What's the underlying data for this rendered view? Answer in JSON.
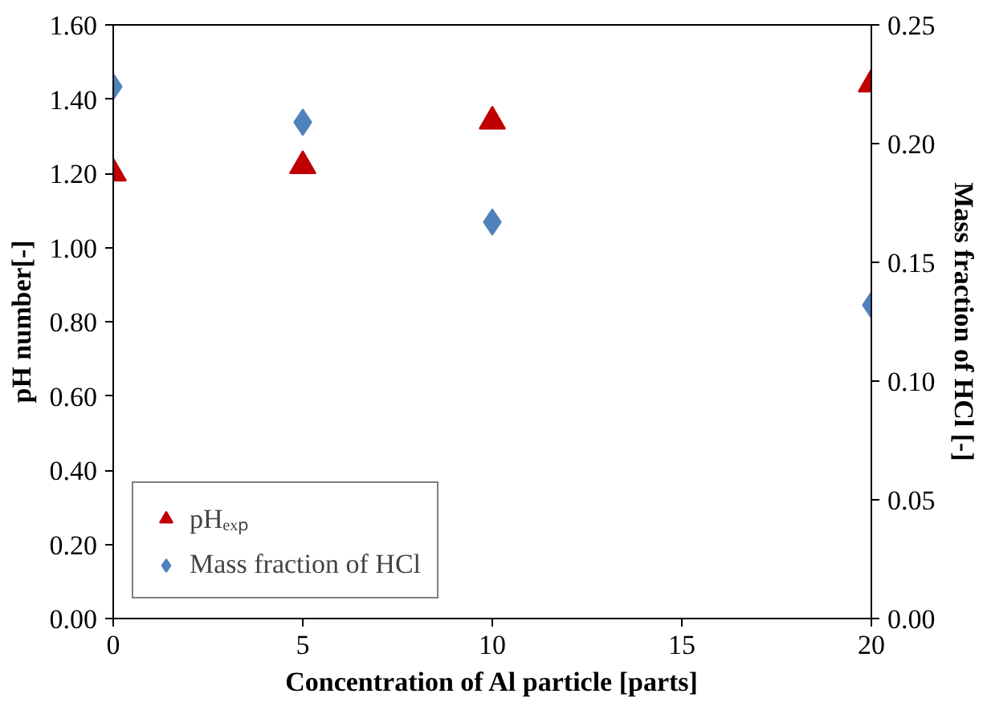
{
  "chart_data": {
    "type": "scatter",
    "xlabel": "Concentration of Al particle [parts]",
    "ylabel": "pH number[-]",
    "y2label": "Mass fraction of HCl [-]",
    "x": [
      0,
      5,
      10,
      20
    ],
    "series": [
      {
        "name": "pHₑₓₚ",
        "color": "#c00000",
        "marker": "triangle",
        "values": [
          1.2,
          1.22,
          1.34,
          1.44
        ]
      },
      {
        "name": "Mass fraction of HCl",
        "color": "#4f81bd",
        "marker": "diamond",
        "axis": "y2",
        "values": [
          0.224,
          0.209,
          0.167,
          0.132
        ]
      }
    ],
    "xlim": [
      0,
      20
    ],
    "xticks": [
      0,
      5,
      10,
      15,
      20
    ],
    "ylim": [
      0,
      1.6
    ],
    "yticks": [
      {
        "value": 0,
        "label": "0.00"
      },
      {
        "value": 0.2,
        "label": "0.20"
      },
      {
        "value": 0.4,
        "label": "0.40"
      },
      {
        "value": 0.6,
        "label": "0.60"
      },
      {
        "value": 0.8,
        "label": "0.80"
      },
      {
        "value": 1.0,
        "label": "1.00"
      },
      {
        "value": 1.2,
        "label": "1.20"
      },
      {
        "value": 1.4,
        "label": "1.40"
      },
      {
        "value": 1.6,
        "label": "1.60"
      }
    ],
    "y2lim": [
      0,
      0.25
    ],
    "y2ticks": [
      {
        "value": 0,
        "label": "0.00"
      },
      {
        "value": 0.05,
        "label": "0.05"
      },
      {
        "value": 0.1,
        "label": "0.10"
      },
      {
        "value": 0.15,
        "label": "0.15"
      },
      {
        "value": 0.2,
        "label": "0.20"
      },
      {
        "value": 0.25,
        "label": "0.25"
      }
    ],
    "grid": false,
    "legend": "bottom left"
  }
}
